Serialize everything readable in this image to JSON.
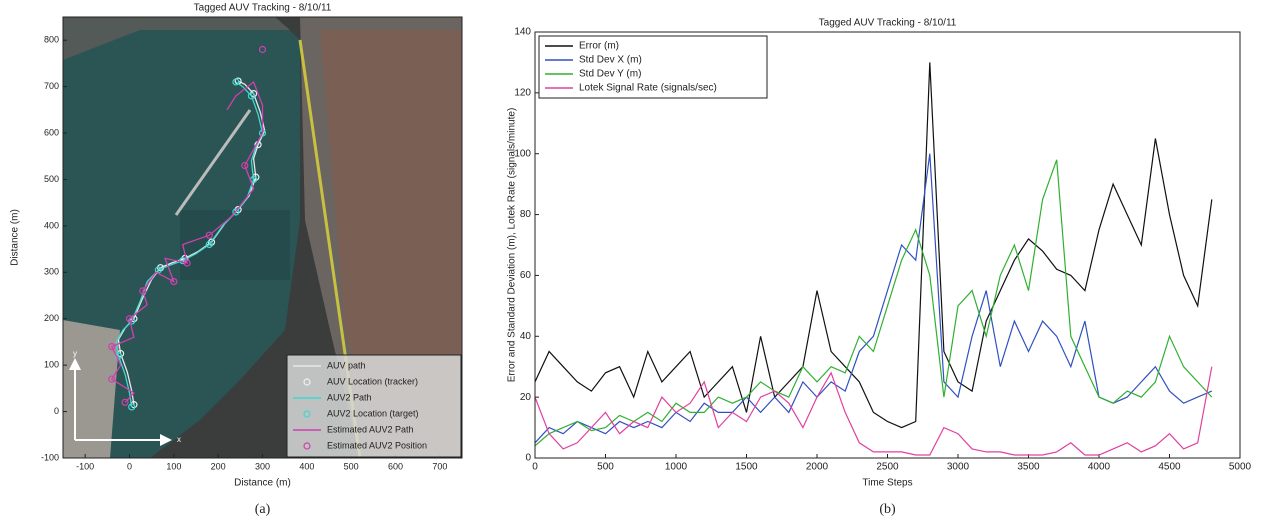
{
  "chart_data": [
    {
      "type": "trajectory",
      "title": "Tagged AUV Tracking - 8/10/11",
      "xlabel": "Distance (m)",
      "ylabel": "Distance (m)",
      "caption": "(a)",
      "xlim": [
        -150,
        750
      ],
      "ylim": [
        -100,
        850
      ],
      "xticks": [
        -100,
        0,
        100,
        200,
        300,
        400,
        500,
        600,
        700
      ],
      "yticks": [
        -100,
        0,
        100,
        200,
        300,
        400,
        500,
        600,
        700,
        800
      ],
      "legend": "lower right",
      "annotations": [
        "y",
        "x"
      ],
      "series": [
        {
          "name": "AUV path",
          "color": "#e8e8e8",
          "style": "line",
          "x": [
            10,
            5,
            -5,
            -20,
            -25,
            -10,
            10,
            30,
            50,
            70,
            95,
            125,
            155,
            185,
            215,
            245,
            270,
            285,
            280,
            290,
            305,
            295,
            280,
            260,
            245
          ],
          "values": [
            15,
            45,
            85,
            125,
            155,
            180,
            200,
            245,
            285,
            310,
            320,
            330,
            345,
            365,
            405,
            435,
            465,
            505,
            545,
            575,
            605,
            645,
            685,
            705,
            712
          ]
        },
        {
          "name": "AUV Location (tracker)",
          "color": "#f0f0f0",
          "style": "marker",
          "x": [
            10,
            -20,
            10,
            70,
            125,
            185,
            245,
            285,
            290,
            280,
            245
          ],
          "values": [
            15,
            125,
            200,
            310,
            330,
            365,
            435,
            505,
            575,
            685,
            712
          ]
        },
        {
          "name": "AUV2 Path",
          "color": "#40d8d0",
          "style": "line",
          "x": [
            5,
            0,
            -10,
            -25,
            -30,
            -15,
            5,
            25,
            40,
            65,
            90,
            120,
            150,
            180,
            210,
            240,
            265,
            280,
            275,
            285,
            300,
            290,
            275,
            255,
            240
          ],
          "values": [
            10,
            40,
            80,
            120,
            150,
            175,
            195,
            240,
            280,
            305,
            315,
            325,
            340,
            360,
            400,
            430,
            460,
            500,
            540,
            570,
            600,
            640,
            680,
            700,
            710
          ]
        },
        {
          "name": "AUV2 Location (target)",
          "color": "#40d8d0",
          "style": "marker",
          "x": [
            5,
            -25,
            5,
            65,
            120,
            180,
            240,
            280,
            300,
            275,
            240
          ],
          "values": [
            10,
            120,
            195,
            305,
            325,
            360,
            430,
            500,
            600,
            680,
            710
          ]
        },
        {
          "name": "Estimated AUV2 Path",
          "color": "#d040b0",
          "style": "line",
          "x": [
            -10,
            10,
            -40,
            -20,
            -40,
            10,
            0,
            40,
            30,
            60,
            100,
            80,
            130,
            120,
            180,
            230,
            280,
            260,
            300,
            300,
            280,
            240,
            220
          ],
          "values": [
            20,
            40,
            70,
            100,
            140,
            160,
            200,
            230,
            260,
            300,
            280,
            330,
            320,
            360,
            380,
            420,
            480,
            530,
            600,
            660,
            710,
            680,
            650
          ]
        },
        {
          "name": "Estimated AUV2 Position",
          "color": "#d040b0",
          "style": "marker",
          "x": [
            -10,
            -40,
            -40,
            0,
            30,
            100,
            130,
            180,
            260,
            300
          ],
          "values": [
            20,
            70,
            140,
            200,
            260,
            280,
            320,
            380,
            530,
            780
          ]
        }
      ]
    },
    {
      "type": "line",
      "title": "Tagged AUV Tracking - 8/10/11",
      "xlabel": "Time Steps",
      "ylabel": "Error and Standard Deviation (m), Lotek Rate (signals/minute)",
      "caption": "(b)",
      "xlim": [
        0,
        5000
      ],
      "ylim": [
        0,
        140
      ],
      "xticks": [
        0,
        500,
        1000,
        1500,
        2000,
        2500,
        3000,
        3500,
        4000,
        4500,
        5000
      ],
      "yticks": [
        0,
        20,
        40,
        60,
        80,
        100,
        120,
        140
      ],
      "legend": "upper left",
      "x": [
        0,
        100,
        200,
        300,
        400,
        500,
        600,
        700,
        800,
        900,
        1000,
        1100,
        1200,
        1300,
        1400,
        1500,
        1600,
        1700,
        1800,
        1900,
        2000,
        2100,
        2200,
        2300,
        2400,
        2500,
        2600,
        2700,
        2800,
        2900,
        3000,
        3100,
        3200,
        3300,
        3400,
        3500,
        3600,
        3700,
        3800,
        3900,
        4000,
        4100,
        4200,
        4300,
        4400,
        4500,
        4600,
        4700,
        4800
      ],
      "series": [
        {
          "name": "Error (m)",
          "color": "#111111",
          "values": [
            25,
            35,
            30,
            25,
            22,
            28,
            30,
            20,
            35,
            25,
            30,
            35,
            20,
            25,
            30,
            15,
            40,
            20,
            25,
            30,
            55,
            35,
            30,
            25,
            15,
            12,
            10,
            12,
            130,
            35,
            25,
            22,
            45,
            55,
            65,
            72,
            68,
            62,
            60,
            55,
            75,
            90,
            80,
            70,
            105,
            80,
            60,
            50,
            85
          ]
        },
        {
          "name": "Std Dev X (m)",
          "color": "#3050c0",
          "values": [
            5,
            10,
            8,
            12,
            10,
            8,
            12,
            10,
            12,
            10,
            15,
            12,
            18,
            15,
            15,
            20,
            15,
            20,
            15,
            25,
            20,
            25,
            22,
            35,
            40,
            55,
            70,
            65,
            100,
            25,
            20,
            40,
            55,
            30,
            45,
            35,
            45,
            40,
            30,
            45,
            20,
            18,
            20,
            25,
            30,
            22,
            18,
            20,
            22
          ]
        },
        {
          "name": "Std Dev Y (m)",
          "color": "#30b030",
          "values": [
            4,
            8,
            10,
            12,
            9,
            10,
            14,
            12,
            15,
            12,
            18,
            15,
            15,
            20,
            18,
            20,
            25,
            22,
            20,
            30,
            25,
            30,
            28,
            40,
            35,
            50,
            65,
            75,
            60,
            20,
            50,
            55,
            40,
            60,
            70,
            55,
            85,
            98,
            40,
            30,
            20,
            18,
            22,
            20,
            25,
            40,
            30,
            25,
            20
          ]
        },
        {
          "name": "Lotek Signal Rate (signals/sec)",
          "color": "#e040a0",
          "values": [
            20,
            8,
            3,
            5,
            10,
            15,
            8,
            12,
            10,
            20,
            15,
            18,
            25,
            10,
            15,
            12,
            20,
            22,
            18,
            10,
            20,
            28,
            15,
            5,
            2,
            2,
            2,
            1,
            1,
            10,
            8,
            3,
            2,
            2,
            1,
            1,
            1,
            2,
            5,
            1,
            1,
            3,
            5,
            2,
            4,
            8,
            3,
            5,
            30
          ]
        }
      ]
    }
  ]
}
